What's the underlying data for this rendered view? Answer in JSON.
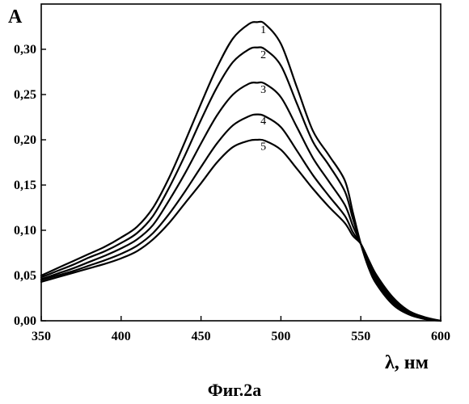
{
  "caption": "Фиг.2а",
  "chart_data": {
    "type": "line",
    "title": "",
    "ylabel": "A",
    "xlabel": "λ, нм",
    "xlim": [
      350,
      600
    ],
    "ylim": [
      0.0,
      0.35
    ],
    "x_ticks": [
      350,
      400,
      450,
      500,
      550,
      600
    ],
    "x_tick_labels": [
      "350",
      "400",
      "450",
      "500",
      "550",
      "600"
    ],
    "y_ticks": [
      0.0,
      0.05,
      0.1,
      0.15,
      0.2,
      0.25,
      0.3
    ],
    "y_tick_labels": [
      "0,00",
      "0,05",
      "0,10",
      "0,15",
      "0,20",
      "0,25",
      "0,30"
    ],
    "grid": false,
    "line_color": "#000000",
    "x": [
      350,
      360,
      370,
      380,
      390,
      400,
      410,
      420,
      430,
      440,
      450,
      460,
      470,
      480,
      485,
      490,
      500,
      510,
      520,
      530,
      540,
      545,
      550,
      555,
      560,
      570,
      580,
      590,
      600
    ],
    "series": [
      {
        "name": "1",
        "values": [
          0.05,
          0.058,
          0.066,
          0.074,
          0.082,
          0.092,
          0.104,
          0.125,
          0.158,
          0.198,
          0.24,
          0.28,
          0.312,
          0.328,
          0.33,
          0.328,
          0.306,
          0.258,
          0.21,
          0.183,
          0.155,
          0.12,
          0.085,
          0.058,
          0.04,
          0.018,
          0.007,
          0.002,
          0.0
        ]
      },
      {
        "name": "2",
        "values": [
          0.048,
          0.055,
          0.062,
          0.07,
          0.077,
          0.086,
          0.097,
          0.116,
          0.147,
          0.183,
          0.222,
          0.258,
          0.286,
          0.3,
          0.302,
          0.3,
          0.282,
          0.24,
          0.198,
          0.172,
          0.143,
          0.113,
          0.085,
          0.06,
          0.042,
          0.02,
          0.008,
          0.002,
          0.0
        ]
      },
      {
        "name": "3",
        "values": [
          0.046,
          0.052,
          0.058,
          0.065,
          0.072,
          0.08,
          0.09,
          0.106,
          0.133,
          0.163,
          0.196,
          0.227,
          0.25,
          0.262,
          0.263,
          0.262,
          0.247,
          0.214,
          0.18,
          0.154,
          0.128,
          0.105,
          0.085,
          0.062,
          0.044,
          0.022,
          0.009,
          0.003,
          0.0
        ]
      },
      {
        "name": "4",
        "values": [
          0.045,
          0.05,
          0.055,
          0.061,
          0.067,
          0.074,
          0.083,
          0.097,
          0.118,
          0.143,
          0.17,
          0.196,
          0.216,
          0.226,
          0.228,
          0.226,
          0.214,
          0.188,
          0.161,
          0.138,
          0.116,
          0.098,
          0.085,
          0.065,
          0.047,
          0.024,
          0.01,
          0.003,
          0.0
        ]
      },
      {
        "name": "5",
        "values": [
          0.043,
          0.048,
          0.053,
          0.058,
          0.063,
          0.069,
          0.077,
          0.09,
          0.108,
          0.13,
          0.152,
          0.175,
          0.192,
          0.199,
          0.2,
          0.199,
          0.189,
          0.168,
          0.146,
          0.126,
          0.108,
          0.094,
          0.085,
          0.067,
          0.05,
          0.026,
          0.011,
          0.004,
          0.0
        ]
      }
    ],
    "series_label_positions": [
      {
        "name": "1",
        "x": 489,
        "y": 0.318
      },
      {
        "name": "2",
        "x": 489,
        "y": 0.29
      },
      {
        "name": "3",
        "x": 489,
        "y": 0.252
      },
      {
        "name": "4",
        "x": 489,
        "y": 0.217
      },
      {
        "name": "5",
        "x": 489,
        "y": 0.189
      }
    ]
  }
}
